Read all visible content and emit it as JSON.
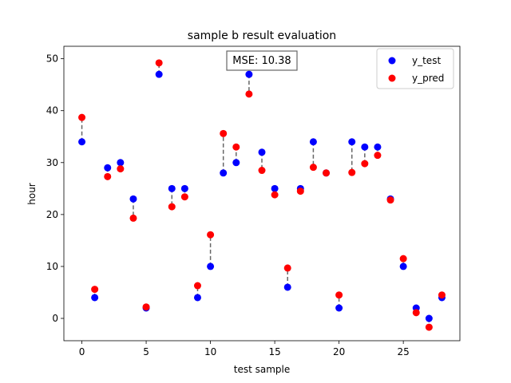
{
  "chart_data": {
    "type": "scatter",
    "title": "sample b result evaluation",
    "xlabel": "test sample",
    "ylabel": "hour",
    "xlim": [
      -1.4,
      29.4
    ],
    "ylim": [
      -4.3,
      52.4
    ],
    "xticks": [
      0,
      5,
      10,
      15,
      20,
      25
    ],
    "yticks": [
      0,
      10,
      20,
      30,
      40,
      50
    ],
    "grid": false,
    "legend_position": "upper right",
    "annotation": "MSE: 10.38",
    "series": [
      {
        "name": "y_test",
        "color": "#0000ff",
        "x": [
          0,
          1,
          2,
          3,
          4,
          5,
          6,
          7,
          8,
          9,
          10,
          11,
          12,
          13,
          14,
          15,
          16,
          17,
          18,
          19,
          20,
          21,
          22,
          23,
          24,
          25,
          26,
          27,
          28
        ],
        "values": [
          34,
          4,
          29,
          30,
          23,
          2,
          47,
          25,
          25,
          4,
          10,
          28,
          30,
          47,
          32,
          25,
          6,
          25,
          34,
          28,
          2,
          34,
          33,
          33,
          23,
          10,
          2,
          0,
          4
        ]
      },
      {
        "name": "y_pred",
        "color": "#ff0000",
        "x": [
          0,
          1,
          2,
          3,
          4,
          5,
          6,
          7,
          8,
          9,
          10,
          11,
          12,
          13,
          14,
          15,
          16,
          17,
          18,
          19,
          20,
          21,
          22,
          23,
          24,
          25,
          26,
          27,
          28
        ],
        "values": [
          38.7,
          5.6,
          27.3,
          28.8,
          19.3,
          2.2,
          49.2,
          21.5,
          23.4,
          6.3,
          16.1,
          35.6,
          33.0,
          43.2,
          28.5,
          23.8,
          9.7,
          24.5,
          29.1,
          28.0,
          4.5,
          28.1,
          29.8,
          31.4,
          22.8,
          11.5,
          1.1,
          -1.7,
          4.5
        ]
      }
    ]
  }
}
